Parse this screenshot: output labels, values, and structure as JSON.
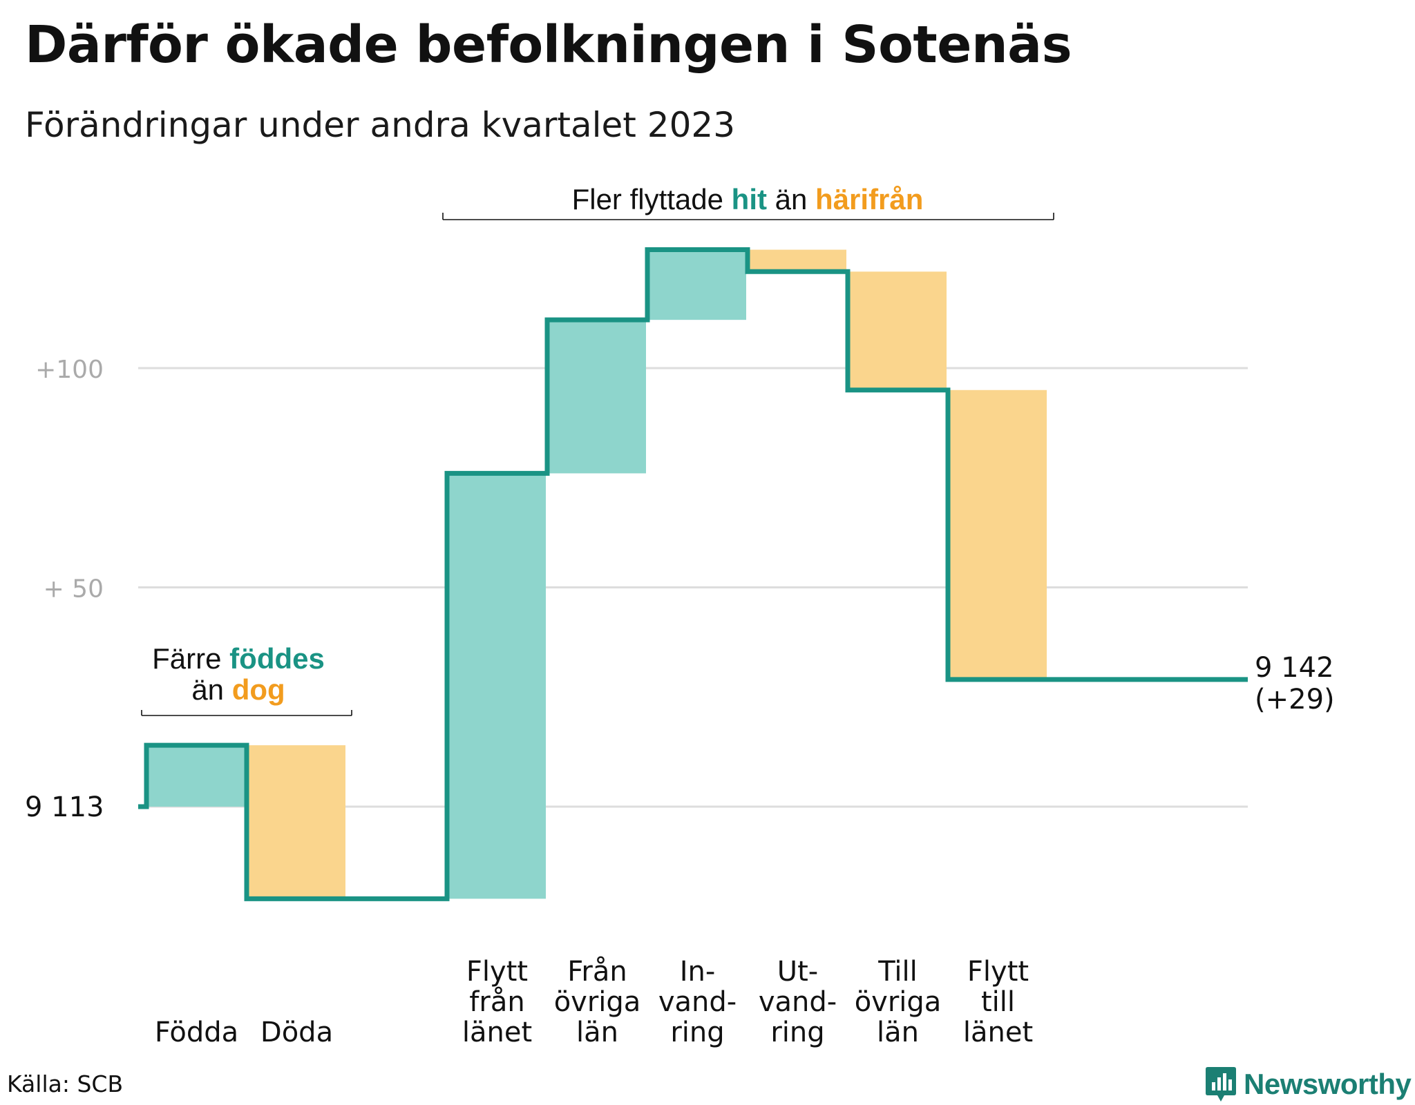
{
  "title": "Därför ökade befolkningen i Sotenäs",
  "subtitle": "Förändringar under andra kvartalet 2023",
  "source": "Källa: SCB",
  "logo_text": "Newsworthy",
  "colors": {
    "line": "#1a9384",
    "increase_fill": "#8ed5cc",
    "decrease_fill": "#fad58d",
    "increase_text": "#1a9384",
    "decrease_text": "#f29c1e",
    "grid": "#dddddd",
    "tick_text": "#aaaaaa"
  },
  "annotations": {
    "births_deaths": {
      "line1_prefix": "Färre ",
      "line1_highlight": "föddes",
      "line2_prefix": "än ",
      "line2_highlight": "dog"
    },
    "migration": {
      "prefix": "Fler flyttade ",
      "highlight1": "hit",
      "middle": " än ",
      "highlight2": "härifrån"
    }
  },
  "chart_data": {
    "type": "waterfall",
    "start_value": 9113,
    "start_label": "9  113",
    "end_label_line1": "9 142",
    "end_label_line2": "(+29)",
    "yticks": [
      {
        "value": 100,
        "label": "+100"
      },
      {
        "value": 50,
        "label": "+  50"
      }
    ],
    "ylim": [
      -30,
      140
    ],
    "steps": [
      {
        "label_lines": [
          "Födda"
        ],
        "change": 14
      },
      {
        "label_lines": [
          "Döda"
        ],
        "change": -35
      },
      {
        "label_lines": [
          "Flytt",
          "från",
          "länet"
        ],
        "change": 97
      },
      {
        "label_lines": [
          "Från",
          "övriga",
          "län"
        ],
        "change": 35
      },
      {
        "label_lines": [
          "In-",
          "vand-",
          "ring"
        ],
        "change": 16
      },
      {
        "label_lines": [
          "Ut-",
          "vand-",
          "ring"
        ],
        "change": -5
      },
      {
        "label_lines": [
          "Till",
          "övriga",
          "län"
        ],
        "change": -27
      },
      {
        "label_lines": [
          "Flytt",
          "till",
          "länet"
        ],
        "change": -66
      }
    ],
    "gap_after_step": 2,
    "total_change": 29
  }
}
